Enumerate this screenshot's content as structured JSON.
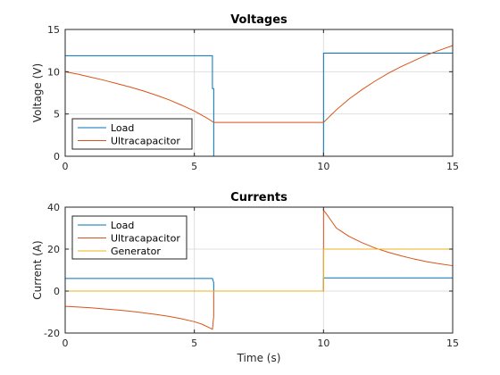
{
  "chart_data": [
    {
      "type": "line",
      "title": "Voltages",
      "xlabel": "",
      "ylabel": "Voltage (V)",
      "xlim": [
        0,
        15
      ],
      "ylim": [
        0,
        15
      ],
      "xticks": [
        "0",
        "5",
        "10",
        "15"
      ],
      "yticks": [
        "0",
        "5",
        "10",
        "15"
      ],
      "grid": true,
      "legend_placement": "bottom-left",
      "series": [
        {
          "name": "Load",
          "color": "#0072BD",
          "points": [
            [
              0,
              11.9
            ],
            [
              5.7,
              11.9
            ],
            [
              5.7,
              8.0
            ],
            [
              5.75,
              8.0
            ],
            [
              5.75,
              0
            ],
            [
              10.0,
              0
            ],
            [
              10.0,
              12.2
            ],
            [
              15,
              12.2
            ]
          ]
        },
        {
          "name": "Ultracapacitor",
          "color": "#D95319",
          "points": [
            [
              0,
              10.0
            ],
            [
              0.5,
              9.7
            ],
            [
              1.0,
              9.35
            ],
            [
              1.5,
              9.0
            ],
            [
              2.0,
              8.6
            ],
            [
              2.5,
              8.2
            ],
            [
              3.0,
              7.75
            ],
            [
              3.5,
              7.25
            ],
            [
              4.0,
              6.7
            ],
            [
              4.5,
              6.05
            ],
            [
              5.0,
              5.35
            ],
            [
              5.5,
              4.5
            ],
            [
              5.75,
              4.0
            ],
            [
              10.0,
              4.0
            ],
            [
              10.2,
              4.6
            ],
            [
              10.5,
              5.5
            ],
            [
              11.0,
              6.8
            ],
            [
              11.5,
              7.9
            ],
            [
              12.0,
              8.9
            ],
            [
              12.5,
              9.8
            ],
            [
              13.0,
              10.6
            ],
            [
              13.5,
              11.3
            ],
            [
              14.0,
              12.0
            ],
            [
              14.5,
              12.55
            ],
            [
              15.0,
              13.1
            ]
          ]
        }
      ]
    },
    {
      "type": "line",
      "title": "Currents",
      "xlabel": "Time (s)",
      "ylabel": "Current (A)",
      "xlim": [
        0,
        15
      ],
      "ylim": [
        -20,
        40
      ],
      "xticks": [
        "0",
        "5",
        "10",
        "15"
      ],
      "yticks": [
        "-20",
        "0",
        "20",
        "40"
      ],
      "grid": true,
      "legend_placement": "top-left",
      "series": [
        {
          "name": "Load",
          "color": "#0072BD",
          "points": [
            [
              0,
              6.0
            ],
            [
              5.7,
              6.0
            ],
            [
              5.75,
              4.0
            ],
            [
              5.75,
              0
            ],
            [
              10.0,
              0
            ],
            [
              10.0,
              6.3
            ],
            [
              15,
              6.3
            ]
          ]
        },
        {
          "name": "Ultracapacitor",
          "color": "#D95319",
          "points": [
            [
              0,
              -7.3
            ],
            [
              0.5,
              -7.6
            ],
            [
              1.0,
              -8.0
            ],
            [
              1.5,
              -8.5
            ],
            [
              2.0,
              -9.0
            ],
            [
              2.5,
              -9.6
            ],
            [
              3.0,
              -10.3
            ],
            [
              3.5,
              -11.1
            ],
            [
              4.0,
              -12.0
            ],
            [
              4.5,
              -13.2
            ],
            [
              5.0,
              -14.6
            ],
            [
              5.3,
              -15.8
            ],
            [
              5.6,
              -17.6
            ],
            [
              5.7,
              -18.2
            ],
            [
              5.75,
              -12.0
            ],
            [
              5.75,
              0
            ],
            [
              10.0,
              0
            ],
            [
              10.0,
              38.5
            ],
            [
              10.1,
              37.0
            ],
            [
              10.3,
              33.5
            ],
            [
              10.5,
              30.0
            ],
            [
              11.0,
              26.0
            ],
            [
              11.5,
              23.0
            ],
            [
              12.0,
              20.5
            ],
            [
              12.5,
              18.5
            ],
            [
              13.0,
              16.8
            ],
            [
              13.5,
              15.3
            ],
            [
              14.0,
              14.0
            ],
            [
              14.5,
              13.0
            ],
            [
              15.0,
              12.1
            ]
          ]
        },
        {
          "name": "Generator",
          "color": "#EDB120",
          "points": [
            [
              0,
              0
            ],
            [
              10.0,
              0
            ],
            [
              10.0,
              20.0
            ],
            [
              15,
              20.0
            ]
          ]
        }
      ]
    }
  ]
}
